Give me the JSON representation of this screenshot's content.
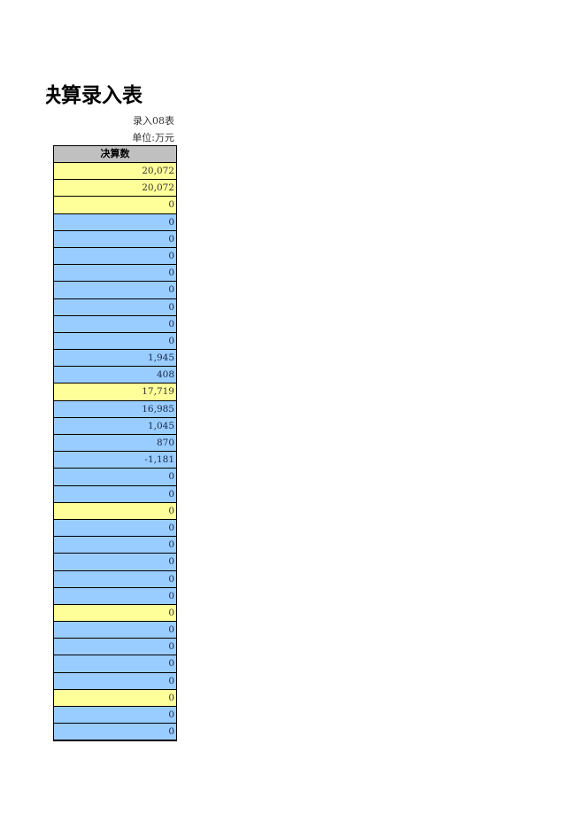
{
  "title": "决算录入表",
  "table_code": "录入08表",
  "unit": "单位:万元",
  "column_header": "决算数",
  "colors": {
    "yellow": "#ffff99",
    "blue": "#99ccff",
    "header": "#c0c0c0"
  },
  "rows": [
    {
      "value": "20,072",
      "color": "yellow"
    },
    {
      "value": "20,072",
      "color": "yellow"
    },
    {
      "value": "0",
      "color": "yellow"
    },
    {
      "value": "0",
      "color": "blue"
    },
    {
      "value": "0",
      "color": "blue"
    },
    {
      "value": "0",
      "color": "blue"
    },
    {
      "value": "0",
      "color": "blue"
    },
    {
      "value": "0",
      "color": "blue"
    },
    {
      "value": "0",
      "color": "blue"
    },
    {
      "value": "0",
      "color": "blue"
    },
    {
      "value": "0",
      "color": "blue"
    },
    {
      "value": "1,945",
      "color": "blue"
    },
    {
      "value": "408",
      "color": "blue"
    },
    {
      "value": "17,719",
      "color": "yellow"
    },
    {
      "value": "16,985",
      "color": "blue"
    },
    {
      "value": "1,045",
      "color": "blue"
    },
    {
      "value": "870",
      "color": "blue"
    },
    {
      "value": "-1,181",
      "color": "blue"
    },
    {
      "value": "0",
      "color": "blue"
    },
    {
      "value": "0",
      "color": "blue"
    },
    {
      "value": "0",
      "color": "yellow"
    },
    {
      "value": "0",
      "color": "blue"
    },
    {
      "value": "0",
      "color": "blue"
    },
    {
      "value": "0",
      "color": "blue"
    },
    {
      "value": "0",
      "color": "blue"
    },
    {
      "value": "0",
      "color": "blue"
    },
    {
      "value": "0",
      "color": "yellow"
    },
    {
      "value": "0",
      "color": "blue"
    },
    {
      "value": "0",
      "color": "blue"
    },
    {
      "value": "0",
      "color": "blue"
    },
    {
      "value": "0",
      "color": "blue"
    },
    {
      "value": "0",
      "color": "yellow"
    },
    {
      "value": "0",
      "color": "blue"
    },
    {
      "value": "0",
      "color": "blue"
    }
  ]
}
